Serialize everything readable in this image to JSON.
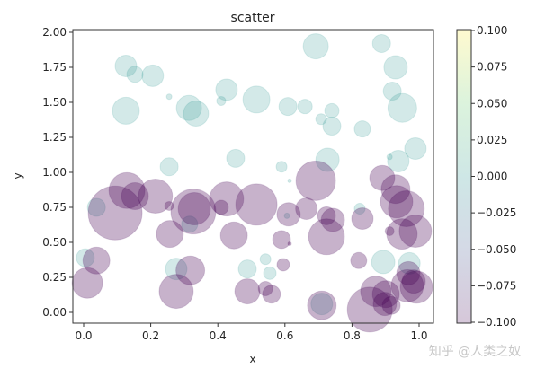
{
  "chart_data": {
    "type": "scatter",
    "title": "scatter",
    "xlabel": "x",
    "ylabel": "y",
    "xlim": [
      -0.03,
      1.04
    ],
    "ylim": [
      -0.08,
      2.02
    ],
    "xticks": [
      "0.0",
      "0.2",
      "0.4",
      "0.6",
      "0.8",
      "1.0"
    ],
    "yticks": [
      "0.00",
      "0.25",
      "0.50",
      "0.75",
      "1.00",
      "1.25",
      "1.50",
      "1.75",
      "2.00"
    ],
    "grid": false,
    "alpha": 0.3,
    "colormap": "viridis",
    "colorbar": {
      "range": [
        -0.1,
        0.1
      ],
      "ticks": [
        "−0.100",
        "−0.075",
        "−0.050",
        "−0.025",
        "0.000",
        "0.025",
        "0.050",
        "0.075",
        "0.100"
      ]
    },
    "colors": {
      "c_0": "#21918c",
      "c_neg0.1": "#440154"
    },
    "points": [
      {
        "x": 0.126,
        "y": 1.76,
        "s": 144,
        "c": 0
      },
      {
        "x": 0.153,
        "y": 1.7,
        "s": 81,
        "c": 0
      },
      {
        "x": 0.206,
        "y": 1.69,
        "s": 144,
        "c": 0
      },
      {
        "x": 0.126,
        "y": 1.44,
        "s": 225,
        "c": 0
      },
      {
        "x": 0.255,
        "y": 1.54,
        "s": 9,
        "c": 0
      },
      {
        "x": 0.314,
        "y": 1.46,
        "s": 196,
        "c": 0
      },
      {
        "x": 0.335,
        "y": 1.42,
        "s": 196,
        "c": 0
      },
      {
        "x": 0.426,
        "y": 1.59,
        "s": 144,
        "c": 0
      },
      {
        "x": 0.41,
        "y": 1.51,
        "s": 25,
        "c": 0
      },
      {
        "x": 0.515,
        "y": 1.52,
        "s": 225,
        "c": 0
      },
      {
        "x": 0.692,
        "y": 1.9,
        "s": 196,
        "c": 0
      },
      {
        "x": 0.888,
        "y": 1.92,
        "s": 100,
        "c": 0
      },
      {
        "x": 0.93,
        "y": 1.75,
        "s": 169,
        "c": 0
      },
      {
        "x": 0.92,
        "y": 1.58,
        "s": 100,
        "c": 0
      },
      {
        "x": 0.95,
        "y": 1.46,
        "s": 256,
        "c": 0
      },
      {
        "x": 0.609,
        "y": 1.47,
        "s": 100,
        "c": 0
      },
      {
        "x": 0.66,
        "y": 1.47,
        "s": 64,
        "c": 0
      },
      {
        "x": 0.708,
        "y": 1.38,
        "s": 36,
        "c": 0
      },
      {
        "x": 0.74,
        "y": 1.44,
        "s": 64,
        "c": 0
      },
      {
        "x": 0.74,
        "y": 1.33,
        "s": 100,
        "c": 0
      },
      {
        "x": 0.831,
        "y": 1.31,
        "s": 81,
        "c": 0
      },
      {
        "x": 0.255,
        "y": 1.04,
        "s": 100,
        "c": 0
      },
      {
        "x": 0.453,
        "y": 1.1,
        "s": 100,
        "c": 0
      },
      {
        "x": 0.59,
        "y": 1.04,
        "s": 36,
        "c": 0
      },
      {
        "x": 0.614,
        "y": 0.94,
        "s": 4,
        "c": 0
      },
      {
        "x": 0.727,
        "y": 1.09,
        "s": 169,
        "c": 0
      },
      {
        "x": 0.912,
        "y": 1.11,
        "s": 9,
        "c": 0
      },
      {
        "x": 0.938,
        "y": 1.08,
        "s": 144,
        "c": 0
      },
      {
        "x": 0.989,
        "y": 1.17,
        "s": 144,
        "c": 0
      },
      {
        "x": 0.038,
        "y": 0.75,
        "s": 100,
        "c": 0
      },
      {
        "x": 0.316,
        "y": 0.63,
        "s": 81,
        "c": 0
      },
      {
        "x": 0.005,
        "y": 0.39,
        "s": 100,
        "c": 0
      },
      {
        "x": 0.276,
        "y": 0.31,
        "s": 144,
        "c": 0
      },
      {
        "x": 0.488,
        "y": 0.31,
        "s": 100,
        "c": 0
      },
      {
        "x": 0.542,
        "y": 0.38,
        "s": 36,
        "c": 0
      },
      {
        "x": 0.555,
        "y": 0.28,
        "s": 49,
        "c": 0
      },
      {
        "x": 0.823,
        "y": 0.74,
        "s": 36,
        "c": 0
      },
      {
        "x": 0.893,
        "y": 0.36,
        "s": 169,
        "c": 0
      },
      {
        "x": 0.971,
        "y": 0.35,
        "s": 144,
        "c": 0
      },
      {
        "x": 0.71,
        "y": 0.06,
        "s": 144,
        "c": 0
      },
      {
        "x": 0.606,
        "y": 0.69,
        "s": 9,
        "c": 0
      },
      {
        "x": 0.129,
        "y": 0.87,
        "s": 400,
        "c": -0.1
      },
      {
        "x": 0.153,
        "y": 0.83,
        "s": 225,
        "c": -0.1
      },
      {
        "x": 0.214,
        "y": 0.83,
        "s": 361,
        "c": -0.1
      },
      {
        "x": 0.094,
        "y": 0.71,
        "s": 900,
        "c": -0.1
      },
      {
        "x": 0.255,
        "y": 0.76,
        "s": 25,
        "c": -0.1
      },
      {
        "x": 0.327,
        "y": 0.72,
        "s": 625,
        "c": -0.1
      },
      {
        "x": 0.33,
        "y": 0.74,
        "s": 324,
        "c": -0.1
      },
      {
        "x": 0.426,
        "y": 0.81,
        "s": 361,
        "c": -0.1
      },
      {
        "x": 0.41,
        "y": 0.75,
        "s": 64,
        "c": -0.1
      },
      {
        "x": 0.515,
        "y": 0.77,
        "s": 529,
        "c": -0.1
      },
      {
        "x": 0.448,
        "y": 0.55,
        "s": 225,
        "c": -0.1
      },
      {
        "x": 0.257,
        "y": 0.56,
        "s": 225,
        "c": -0.1
      },
      {
        "x": 0.038,
        "y": 0.37,
        "s": 225,
        "c": -0.1
      },
      {
        "x": 0.011,
        "y": 0.21,
        "s": 289,
        "c": -0.1
      },
      {
        "x": 0.276,
        "y": 0.15,
        "s": 361,
        "c": -0.1
      },
      {
        "x": 0.318,
        "y": 0.3,
        "s": 256,
        "c": -0.1
      },
      {
        "x": 0.488,
        "y": 0.15,
        "s": 196,
        "c": -0.1
      },
      {
        "x": 0.542,
        "y": 0.17,
        "s": 64,
        "c": -0.1
      },
      {
        "x": 0.56,
        "y": 0.13,
        "s": 100,
        "c": -0.1
      },
      {
        "x": 0.611,
        "y": 0.7,
        "s": 169,
        "c": -0.1
      },
      {
        "x": 0.664,
        "y": 0.74,
        "s": 144,
        "c": -0.1
      },
      {
        "x": 0.692,
        "y": 0.94,
        "s": 484,
        "c": -0.1
      },
      {
        "x": 0.724,
        "y": 0.69,
        "s": 100,
        "c": -0.1
      },
      {
        "x": 0.743,
        "y": 0.66,
        "s": 169,
        "c": -0.1
      },
      {
        "x": 0.724,
        "y": 0.54,
        "s": 400,
        "c": -0.1
      },
      {
        "x": 0.59,
        "y": 0.52,
        "s": 100,
        "c": -0.1
      },
      {
        "x": 0.614,
        "y": 0.49,
        "s": 4,
        "c": -0.1
      },
      {
        "x": 0.595,
        "y": 0.34,
        "s": 49,
        "c": -0.1
      },
      {
        "x": 0.831,
        "y": 0.67,
        "s": 144,
        "c": -0.1
      },
      {
        "x": 0.82,
        "y": 0.37,
        "s": 81,
        "c": -0.1
      },
      {
        "x": 0.89,
        "y": 0.96,
        "s": 196,
        "c": -0.1
      },
      {
        "x": 0.93,
        "y": 0.88,
        "s": 256,
        "c": -0.1
      },
      {
        "x": 0.933,
        "y": 0.79,
        "s": 324,
        "c": -0.1
      },
      {
        "x": 0.962,
        "y": 0.74,
        "s": 400,
        "c": -0.1
      },
      {
        "x": 0.912,
        "y": 0.58,
        "s": 25,
        "c": -0.1
      },
      {
        "x": 0.949,
        "y": 0.56,
        "s": 289,
        "c": -0.1
      },
      {
        "x": 0.989,
        "y": 0.58,
        "s": 324,
        "c": -0.1
      },
      {
        "x": 0.871,
        "y": 0.15,
        "s": 289,
        "c": -0.1
      },
      {
        "x": 0.901,
        "y": 0.13,
        "s": 225,
        "c": -0.1
      },
      {
        "x": 0.965,
        "y": 0.19,
        "s": 324,
        "c": -0.1
      },
      {
        "x": 0.968,
        "y": 0.28,
        "s": 169,
        "c": -0.1
      },
      {
        "x": 0.984,
        "y": 0.22,
        "s": 169,
        "c": -0.1
      },
      {
        "x": 0.992,
        "y": 0.18,
        "s": 324,
        "c": -0.1
      },
      {
        "x": 0.853,
        "y": 0.02,
        "s": 625,
        "c": -0.1
      },
      {
        "x": 0.898,
        "y": 0.06,
        "s": 169,
        "c": -0.1
      },
      {
        "x": 0.917,
        "y": 0.05,
        "s": 100,
        "c": -0.1
      },
      {
        "x": 0.71,
        "y": 0.05,
        "s": 256,
        "c": -0.1
      }
    ]
  },
  "watermark": "知乎 @人类之奴"
}
